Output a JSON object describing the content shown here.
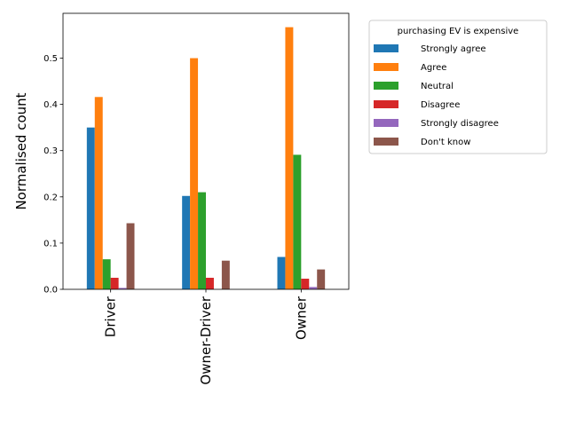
{
  "chart_data": {
    "type": "bar",
    "categories": [
      "Driver",
      "Owner-Driver",
      "Owner"
    ],
    "xlabel": "",
    "ylabel": "Normalised count",
    "ylim": [
      0,
      0.6
    ],
    "yticks": [
      0.0,
      0.1,
      0.2,
      0.3,
      0.4,
      0.5
    ],
    "ytick_labels": [
      "0.0",
      "0.1",
      "0.2",
      "0.3",
      "0.4",
      "0.5"
    ],
    "grid": false,
    "legend": {
      "title": "purchasing EV is expensive",
      "placement": "outside-upper-right"
    },
    "series": [
      {
        "name": "Strongly agree",
        "color": "#1f77b4",
        "values": [
          0.35,
          0.202,
          0.07
        ]
      },
      {
        "name": "Agree",
        "color": "#ff7f0e",
        "values": [
          0.416,
          0.5,
          0.567
        ]
      },
      {
        "name": "Neutral",
        "color": "#2ca02c",
        "values": [
          0.065,
          0.21,
          0.291
        ]
      },
      {
        "name": "Disagree",
        "color": "#d62728",
        "values": [
          0.025,
          0.025,
          0.023
        ]
      },
      {
        "name": "Strongly disagree",
        "color": "#9467bd",
        "values": [
          0.003,
          0.0,
          0.005
        ]
      },
      {
        "name": "Don't know",
        "color": "#8c564b",
        "values": [
          0.143,
          0.062,
          0.043
        ]
      }
    ]
  }
}
